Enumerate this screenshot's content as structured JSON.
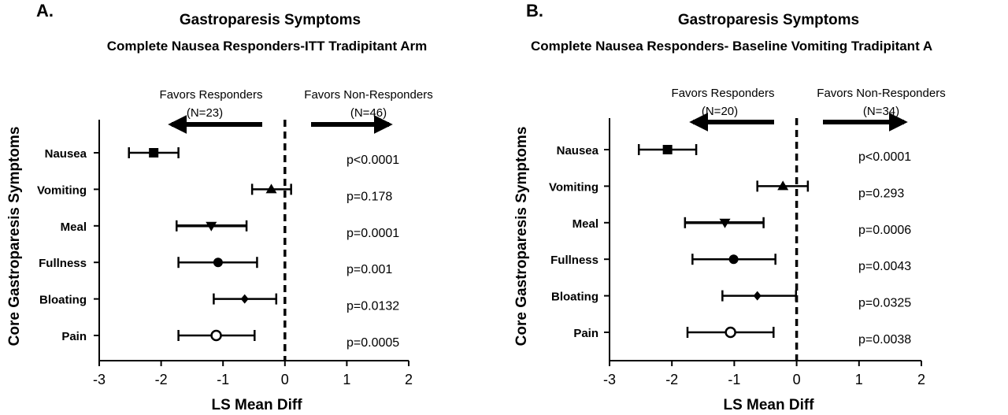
{
  "chart_data": [
    {
      "type": "forest",
      "panel_label": "A.",
      "title": "Gastroparesis Symptoms",
      "subtitle": "Complete Nausea Responders-ITT Tradipitant Arm",
      "xlabel": "LS Mean Diff",
      "ylabel": "Core Gastroparesis Symptoms",
      "xlim": [
        -3,
        2
      ],
      "xticks": [
        "-3",
        "-2",
        "-1",
        "0",
        "1",
        "2"
      ],
      "reference_line": 0,
      "favors_left": {
        "label": "Favors Responders",
        "n": "(N=23)"
      },
      "favors_right": {
        "label": "Favors Non-Responders",
        "n": "(N=46)"
      },
      "rows": [
        {
          "label": "Nausea",
          "marker": "square",
          "estimate": -2.12,
          "lower": -2.52,
          "upper": -1.72,
          "p": "p<0.0001"
        },
        {
          "label": "Vomiting",
          "marker": "triangle-up",
          "estimate": -0.22,
          "lower": -0.53,
          "upper": 0.1,
          "p": "p=0.178"
        },
        {
          "label": "Meal",
          "marker": "triangle-down",
          "estimate": -1.19,
          "lower": -1.75,
          "upper": -0.62,
          "p": "p=0.0001"
        },
        {
          "label": "Fullness",
          "marker": "circle",
          "estimate": -1.08,
          "lower": -1.72,
          "upper": -0.45,
          "p": "p=0.001"
        },
        {
          "label": "Bloating",
          "marker": "diamond",
          "estimate": -0.65,
          "lower": -1.15,
          "upper": -0.14,
          "p": "p=0.0132"
        },
        {
          "label": "Pain",
          "marker": "circle-open",
          "estimate": -1.11,
          "lower": -1.72,
          "upper": -0.49,
          "p": "p=0.0005"
        }
      ]
    },
    {
      "type": "forest",
      "panel_label": "B.",
      "title": "Gastroparesis Symptoms",
      "subtitle": "Complete Nausea Responders- Baseline Vomiting Tradipitant A",
      "xlabel": "LS Mean Diff",
      "ylabel": "Core Gastroparesis Symptoms",
      "xlim": [
        -3,
        2
      ],
      "xticks": [
        "-3",
        "-2",
        "-1",
        "0",
        "1",
        "2"
      ],
      "reference_line": 0,
      "favors_left": {
        "label": "Favors Responders",
        "n": "(N=20)"
      },
      "favors_right": {
        "label": "Favors Non-Responders",
        "n": "(N=34)"
      },
      "rows": [
        {
          "label": "Nausea",
          "marker": "square",
          "estimate": -2.07,
          "lower": -2.53,
          "upper": -1.61,
          "p": "p<0.0001"
        },
        {
          "label": "Vomiting",
          "marker": "triangle-up",
          "estimate": -0.22,
          "lower": -0.63,
          "upper": 0.18,
          "p": "p=0.293"
        },
        {
          "label": "Meal",
          "marker": "triangle-down",
          "estimate": -1.15,
          "lower": -1.79,
          "upper": -0.53,
          "p": "p=0.0006"
        },
        {
          "label": "Fullness",
          "marker": "circle",
          "estimate": -1.01,
          "lower": -1.67,
          "upper": -0.34,
          "p": "p=0.0043"
        },
        {
          "label": "Bloating",
          "marker": "diamond",
          "estimate": -0.63,
          "lower": -1.19,
          "upper": -0.01,
          "p": "p=0.0325"
        },
        {
          "label": "Pain",
          "marker": "circle-open",
          "estimate": -1.06,
          "lower": -1.75,
          "upper": -0.37,
          "p": "p=0.0038"
        }
      ]
    }
  ]
}
